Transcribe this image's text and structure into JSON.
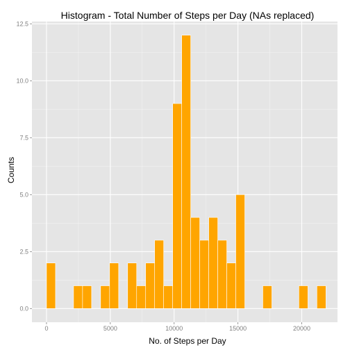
{
  "chart_data": {
    "type": "bar",
    "title": "Histogram - Total Number of Steps per Day (NAs replaced)",
    "xlabel": "No. of Steps per Day",
    "ylabel": "Counts",
    "xlim": [
      -1140,
      22800
    ],
    "ylim": [
      -0.6,
      12.6
    ],
    "x_ticks": [
      0,
      5000,
      10000,
      15000,
      20000
    ],
    "y_ticks": [
      0.0,
      2.5,
      5.0,
      7.5,
      10.0,
      12.5
    ],
    "x_tick_labels": [
      "0",
      "5000",
      "10000",
      "15000",
      "20000"
    ],
    "y_tick_labels": [
      "0.0",
      "2.5",
      "5.0",
      "7.5",
      "10.0",
      "12.5"
    ],
    "bin_width": 706,
    "bins": [
      {
        "x": 353,
        "count": 2
      },
      {
        "x": 2473,
        "count": 1
      },
      {
        "x": 3179,
        "count": 1
      },
      {
        "x": 4591,
        "count": 1
      },
      {
        "x": 5297,
        "count": 2
      },
      {
        "x": 6710,
        "count": 2
      },
      {
        "x": 7416,
        "count": 1
      },
      {
        "x": 8122,
        "count": 2
      },
      {
        "x": 8828,
        "count": 3
      },
      {
        "x": 9534,
        "count": 1
      },
      {
        "x": 10241,
        "count": 9
      },
      {
        "x": 10947,
        "count": 12
      },
      {
        "x": 11653,
        "count": 4
      },
      {
        "x": 12359,
        "count": 3
      },
      {
        "x": 13066,
        "count": 4
      },
      {
        "x": 13772,
        "count": 3
      },
      {
        "x": 14478,
        "count": 2
      },
      {
        "x": 15184,
        "count": 5
      },
      {
        "x": 17303,
        "count": 1
      },
      {
        "x": 20128,
        "count": 1
      },
      {
        "x": 21540,
        "count": 1
      }
    ],
    "grid": true,
    "legend": "none",
    "colors": {
      "bar_fill": "#FFA500",
      "bar_stroke": "#FFFFFF",
      "panel_bg": "#E5E5E5",
      "grid_major": "#FFFFFF",
      "grid_minor": "#F2F2F2",
      "tick_text": "#7F7F7F"
    }
  }
}
